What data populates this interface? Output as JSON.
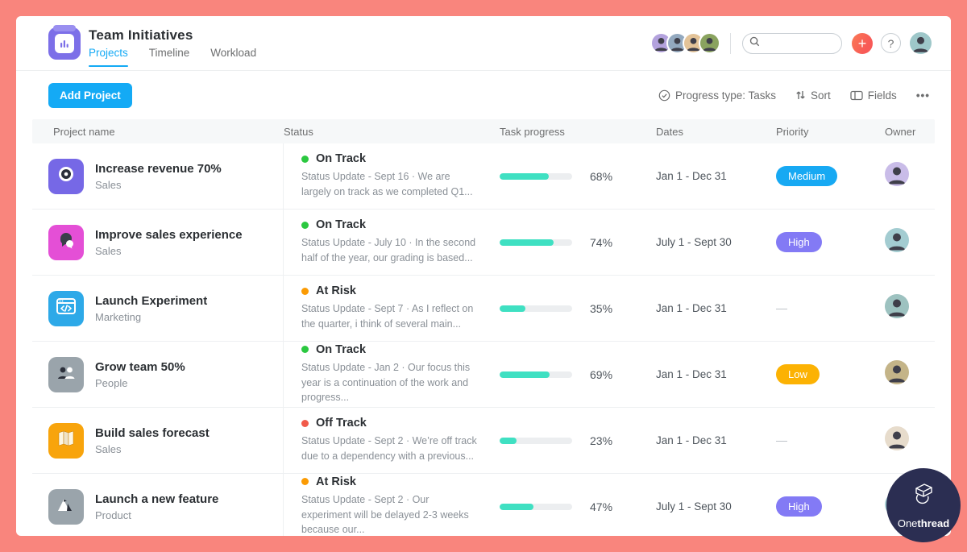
{
  "header": {
    "app_icon": "bar-chart-icon",
    "title": "Team Initiatives",
    "tabs": [
      {
        "label": "Projects",
        "active": true
      },
      {
        "label": "Timeline",
        "active": false
      },
      {
        "label": "Workload",
        "active": false
      }
    ],
    "member_avatar_colors": [
      "#b3a2dd",
      "#93a9bf",
      "#e3c398",
      "#8aa35f"
    ],
    "search": {
      "placeholder": ""
    },
    "plus_label": "+",
    "help_label": "?",
    "user_avatar_color": "#9ec7c9"
  },
  "toolbar": {
    "add_project_label": "Add Project",
    "progress_type_label": "Progress type: Tasks",
    "sort_label": "Sort",
    "fields_label": "Fields",
    "more_label": "•••"
  },
  "table": {
    "columns": [
      "Project name",
      "Status",
      "Task progress",
      "Dates",
      "Priority",
      "Owner"
    ],
    "rows": [
      {
        "name": "Increase revenue 70%",
        "team": "Sales",
        "icon": "target-icon",
        "icon_bg": "#7668e6",
        "status": "On Track",
        "status_color": "#2bc840",
        "update": "Status Update - Sept 16 · We are largely on track as we completed Q1...",
        "progress": 68,
        "progress_label": "68%",
        "dates": "Jan 1 - Dec 31",
        "priority": "Medium",
        "priority_color": "#17a9f3",
        "owner_bg": "#c9bce8"
      },
      {
        "name": "Improve sales experience",
        "team": "Sales",
        "icon": "chat-icon",
        "icon_bg": "#e44fd6",
        "status": "On Track",
        "status_color": "#2bc840",
        "update": "Status Update - July 10 · In the second half of the year, our grading is based...",
        "progress": 74,
        "progress_label": "74%",
        "dates": "July 1 - Sept 30",
        "priority": "High",
        "priority_color": "#837af5",
        "owner_bg": "#a3ccd1"
      },
      {
        "name": "Launch Experiment",
        "team": "Marketing",
        "icon": "code-browser-icon",
        "icon_bg": "#2da9e8",
        "status": "At Risk",
        "status_color": "#fb9b04",
        "update": "Status Update - Sept 7 · As I reflect on the quarter, i think of several main...",
        "progress": 35,
        "progress_label": "35%",
        "dates": "Jan 1 - Dec 31",
        "priority": "—",
        "priority_color": null,
        "owner_bg": "#9dc2c0"
      },
      {
        "name": "Grow team 50%",
        "team": "People",
        "icon": "people-icon",
        "icon_bg": "#9aa4ab",
        "status": "On Track",
        "status_color": "#2bc840",
        "update": "Status Update - Jan 2 · Our focus this year is a continuation of the work and progress...",
        "progress": 69,
        "progress_label": "69%",
        "dates": "Jan 1 - Dec 31",
        "priority": "Low",
        "priority_color": "#fcb203",
        "owner_bg": "#c4b488"
      },
      {
        "name": "Build sales forecast",
        "team": "Sales",
        "icon": "map-icon",
        "icon_bg": "#f8a40c",
        "status": "Off Track",
        "status_color": "#f15a4a",
        "update": "Status Update - Sept 2 · We’re off track due to a dependency with a previous...",
        "progress": 23,
        "progress_label": "23%",
        "dates": "Jan 1 - Dec 31",
        "priority": "—",
        "priority_color": null,
        "owner_bg": "#e7dccc"
      },
      {
        "name": "Launch a new feature",
        "team": "Product",
        "icon": "mountain-icon",
        "icon_bg": "#9aa4ab",
        "status": "At Risk",
        "status_color": "#fb9b04",
        "update": "Status Update - Sept 2 · Our experiment will be delayed 2-3 weeks because our...",
        "progress": 47,
        "progress_label": "47%",
        "dates": "July 1 - Sept 30",
        "priority": "High",
        "priority_color": "#837af5",
        "owner_bg": "#a3ccd1"
      }
    ]
  },
  "branding": {
    "logo_one": "One",
    "logo_thread": "thread"
  },
  "colors": {
    "frame": "#f9857d",
    "accent_blue": "#14aaf5",
    "progress_teal": "#3fe0c2",
    "logo_navy": "#2b2e52"
  }
}
